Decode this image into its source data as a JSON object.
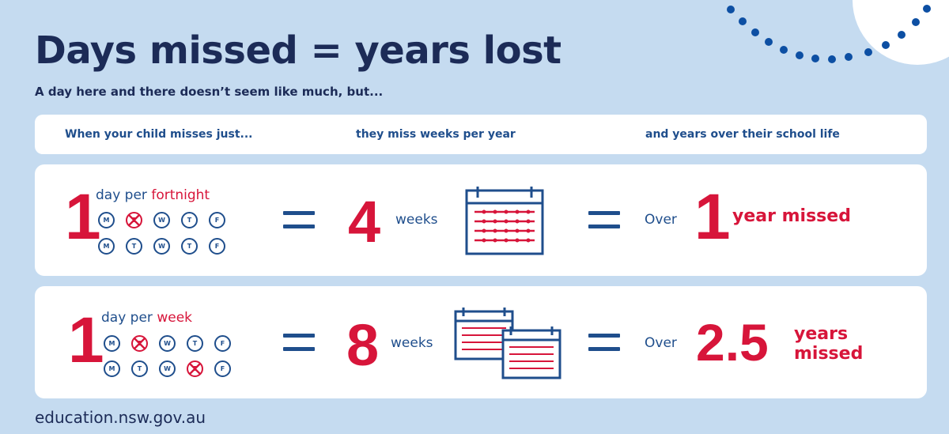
{
  "title": "Days missed = years lost",
  "subtitle": "A day here and there doesn’t seem like much, but...",
  "header": {
    "col1": "When your child misses just...",
    "col2": "they miss weeks per year",
    "col3": "and years over their school life"
  },
  "rows": [
    {
      "days_count": "1",
      "freq_prefix": "day per ",
      "freq_highlight": "fortnight",
      "week1": [
        "M",
        "T",
        "W",
        "T",
        "F"
      ],
      "week2": [
        "M",
        "T",
        "W",
        "T",
        "F"
      ],
      "weeks_count": "4",
      "weeks_label": "weeks",
      "over_label": "Over",
      "years_count": "1",
      "missed_label": "year missed"
    },
    {
      "days_count": "1",
      "freq_prefix": "day per ",
      "freq_highlight": "week",
      "week1": [
        "M",
        "T",
        "W",
        "T",
        "F"
      ],
      "week2": [
        "M",
        "T",
        "W",
        "T",
        "F"
      ],
      "weeks_count": "8",
      "weeks_label": "weeks",
      "over_label": "Over",
      "years_count": "2.5",
      "missed_label_line1": "years",
      "missed_label_line2": "missed"
    }
  ],
  "footer": "education.nsw.gov.au",
  "colors": {
    "background": "#c5dbf0",
    "navy": "#1c2b57",
    "blue": "#1f4e8c",
    "red": "#d7153a",
    "dots": "#0d4fa3"
  },
  "icons": [
    "calendar-icon",
    "cross-icon",
    "dotted-arc-decoration"
  ]
}
